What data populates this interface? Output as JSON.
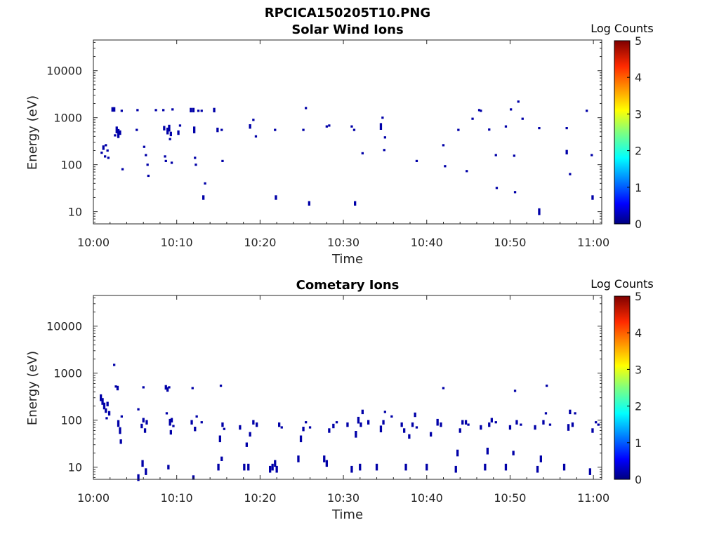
{
  "figure_title": "RPCICA150205T10.PNG",
  "colorbar": {
    "label": "Log Counts",
    "ticks": [
      "0",
      "1",
      "2",
      "3",
      "4",
      "5"
    ],
    "colormap": [
      "#00007f",
      "#0000ff",
      "#007fff",
      "#00ffff",
      "#7fff7f",
      "#ffff00",
      "#ff7f00",
      "#ff0000",
      "#7f0000"
    ]
  },
  "chart_data": [
    {
      "type": "heatmap",
      "title": "Solar Wind Ions",
      "xlabel": "Time",
      "ylabel": "Energy (eV)",
      "x_ticks": [
        "10:00",
        "10:10",
        "10:20",
        "10:30",
        "10:40",
        "10:50",
        "11:00"
      ],
      "y_ticks": [
        "10",
        "100",
        "1000",
        "10000"
      ],
      "y_scale": "log",
      "xlim_minutes": [
        0,
        61
      ],
      "ylim_eV": [
        5.5,
        45000
      ],
      "clim": [
        0,
        5
      ],
      "cell_color": "#0000a8",
      "points": [
        {
          "t": 1.0,
          "e": 180,
          "h": 1
        },
        {
          "t": 1.2,
          "e": 230,
          "h": 2
        },
        {
          "t": 1.4,
          "e": 150,
          "h": 1
        },
        {
          "t": 1.5,
          "e": 260,
          "h": 1
        },
        {
          "t": 1.7,
          "e": 200,
          "h": 1
        },
        {
          "t": 1.8,
          "e": 140,
          "h": 1
        },
        {
          "t": 2.3,
          "e": 1500,
          "h": 2
        },
        {
          "t": 2.5,
          "e": 1500,
          "h": 2
        },
        {
          "t": 2.6,
          "e": 420,
          "h": 1
        },
        {
          "t": 2.8,
          "e": 550,
          "h": 3
        },
        {
          "t": 3.0,
          "e": 460,
          "h": 4
        },
        {
          "t": 3.2,
          "e": 480,
          "h": 2
        },
        {
          "t": 3.4,
          "e": 1400,
          "h": 1
        },
        {
          "t": 3.5,
          "e": 80,
          "h": 1
        },
        {
          "t": 5.2,
          "e": 550,
          "h": 1
        },
        {
          "t": 5.3,
          "e": 1450,
          "h": 1
        },
        {
          "t": 6.1,
          "e": 240,
          "h": 1
        },
        {
          "t": 6.3,
          "e": 160,
          "h": 1
        },
        {
          "t": 6.5,
          "e": 100,
          "h": 1
        },
        {
          "t": 6.6,
          "e": 58,
          "h": 1
        },
        {
          "t": 7.5,
          "e": 1450,
          "h": 1
        },
        {
          "t": 8.4,
          "e": 1450,
          "h": 1
        },
        {
          "t": 8.5,
          "e": 600,
          "h": 2
        },
        {
          "t": 8.6,
          "e": 150,
          "h": 1
        },
        {
          "t": 8.7,
          "e": 120,
          "h": 1
        },
        {
          "t": 8.9,
          "e": 520,
          "h": 3
        },
        {
          "t": 9.1,
          "e": 600,
          "h": 3
        },
        {
          "t": 9.3,
          "e": 450,
          "h": 2
        },
        {
          "t": 9.5,
          "e": 1500,
          "h": 1
        },
        {
          "t": 9.2,
          "e": 350,
          "h": 1
        },
        {
          "t": 9.4,
          "e": 110,
          "h": 1
        },
        {
          "t": 10.2,
          "e": 480,
          "h": 2
        },
        {
          "t": 10.4,
          "e": 680,
          "h": 1
        },
        {
          "t": 11.7,
          "e": 1450,
          "h": 2
        },
        {
          "t": 12.0,
          "e": 1450,
          "h": 2
        },
        {
          "t": 12.1,
          "e": 550,
          "h": 3
        },
        {
          "t": 12.2,
          "e": 140,
          "h": 1
        },
        {
          "t": 12.3,
          "e": 100,
          "h": 1
        },
        {
          "t": 12.6,
          "e": 1400,
          "h": 1
        },
        {
          "t": 13.0,
          "e": 1400,
          "h": 1
        },
        {
          "t": 13.2,
          "e": 20,
          "h": 2
        },
        {
          "t": 13.4,
          "e": 40,
          "h": 1
        },
        {
          "t": 14.5,
          "e": 1450,
          "h": 2
        },
        {
          "t": 14.9,
          "e": 550,
          "h": 2
        },
        {
          "t": 15.4,
          "e": 550,
          "h": 1
        },
        {
          "t": 15.5,
          "e": 120,
          "h": 1
        },
        {
          "t": 18.8,
          "e": 650,
          "h": 2
        },
        {
          "t": 19.2,
          "e": 900,
          "h": 1
        },
        {
          "t": 19.5,
          "e": 400,
          "h": 1
        },
        {
          "t": 21.8,
          "e": 550,
          "h": 1
        },
        {
          "t": 21.9,
          "e": 20,
          "h": 2
        },
        {
          "t": 25.2,
          "e": 550,
          "h": 1
        },
        {
          "t": 25.5,
          "e": 1600,
          "h": 1
        },
        {
          "t": 25.9,
          "e": 15,
          "h": 2
        },
        {
          "t": 28.0,
          "e": 650,
          "h": 1
        },
        {
          "t": 28.3,
          "e": 680,
          "h": 1
        },
        {
          "t": 31.0,
          "e": 650,
          "h": 1
        },
        {
          "t": 31.3,
          "e": 550,
          "h": 1
        },
        {
          "t": 31.4,
          "e": 15,
          "h": 2
        },
        {
          "t": 32.3,
          "e": 175,
          "h": 1
        },
        {
          "t": 34.5,
          "e": 650,
          "h": 3
        },
        {
          "t": 34.7,
          "e": 1000,
          "h": 1
        },
        {
          "t": 35.0,
          "e": 380,
          "h": 1
        },
        {
          "t": 34.9,
          "e": 205,
          "h": 1
        },
        {
          "t": 38.8,
          "e": 120,
          "h": 1
        },
        {
          "t": 42.0,
          "e": 260,
          "h": 1
        },
        {
          "t": 42.2,
          "e": 93,
          "h": 1
        },
        {
          "t": 43.8,
          "e": 550,
          "h": 1
        },
        {
          "t": 44.8,
          "e": 73,
          "h": 1
        },
        {
          "t": 45.5,
          "e": 950,
          "h": 1
        },
        {
          "t": 46.3,
          "e": 1450,
          "h": 1
        },
        {
          "t": 46.5,
          "e": 1400,
          "h": 1
        },
        {
          "t": 47.5,
          "e": 560,
          "h": 1
        },
        {
          "t": 48.3,
          "e": 160,
          "h": 1
        },
        {
          "t": 48.4,
          "e": 32,
          "h": 1
        },
        {
          "t": 49.5,
          "e": 650,
          "h": 1
        },
        {
          "t": 50.1,
          "e": 1500,
          "h": 1
        },
        {
          "t": 50.5,
          "e": 155,
          "h": 1
        },
        {
          "t": 50.6,
          "e": 26,
          "h": 1
        },
        {
          "t": 51.0,
          "e": 2200,
          "h": 1
        },
        {
          "t": 51.5,
          "e": 950,
          "h": 1
        },
        {
          "t": 53.5,
          "e": 600,
          "h": 1
        },
        {
          "t": 53.5,
          "e": 10,
          "h": 3
        },
        {
          "t": 56.8,
          "e": 600,
          "h": 1
        },
        {
          "t": 56.8,
          "e": 185,
          "h": 2
        },
        {
          "t": 57.2,
          "e": 63,
          "h": 1
        },
        {
          "t": 59.2,
          "e": 1400,
          "h": 1
        },
        {
          "t": 59.8,
          "e": 160,
          "h": 1
        },
        {
          "t": 59.9,
          "e": 20,
          "h": 2
        }
      ]
    },
    {
      "type": "heatmap",
      "title": "Cometary Ions",
      "xlabel": "Time",
      "ylabel": "Energy (eV)",
      "x_ticks": [
        "10:00",
        "10:10",
        "10:20",
        "10:30",
        "10:40",
        "10:50",
        "11:00"
      ],
      "y_ticks": [
        "10",
        "100",
        "1000",
        "10000"
      ],
      "y_scale": "log",
      "xlim_minutes": [
        0,
        61
      ],
      "ylim_eV": [
        5.5,
        45000
      ],
      "clim": [
        0,
        5
      ],
      "cell_color": "#0000a8",
      "points": [
        {
          "t": 0.9,
          "e": 300,
          "h": 3
        },
        {
          "t": 1.1,
          "e": 250,
          "h": 3
        },
        {
          "t": 1.3,
          "e": 200,
          "h": 3
        },
        {
          "t": 1.5,
          "e": 160,
          "h": 2
        },
        {
          "t": 1.7,
          "e": 220,
          "h": 2
        },
        {
          "t": 1.9,
          "e": 140,
          "h": 2
        },
        {
          "t": 1.6,
          "e": 110,
          "h": 1
        },
        {
          "t": 2.5,
          "e": 1500,
          "h": 1
        },
        {
          "t": 2.7,
          "e": 520,
          "h": 1
        },
        {
          "t": 2.9,
          "e": 480,
          "h": 2
        },
        {
          "t": 3.0,
          "e": 85,
          "h": 3
        },
        {
          "t": 3.2,
          "e": 60,
          "h": 3
        },
        {
          "t": 3.3,
          "e": 35,
          "h": 2
        },
        {
          "t": 3.4,
          "e": 120,
          "h": 1
        },
        {
          "t": 5.4,
          "e": 6,
          "h": 3
        },
        {
          "t": 5.8,
          "e": 75,
          "h": 2
        },
        {
          "t": 6.0,
          "e": 100,
          "h": 2
        },
        {
          "t": 6.2,
          "e": 60,
          "h": 2
        },
        {
          "t": 6.0,
          "e": 500,
          "h": 1
        },
        {
          "t": 5.4,
          "e": 170,
          "h": 1
        },
        {
          "t": 6.4,
          "e": 90,
          "h": 2
        },
        {
          "t": 6.3,
          "e": 8,
          "h": 3
        },
        {
          "t": 5.9,
          "e": 12,
          "h": 3
        },
        {
          "t": 8.7,
          "e": 500,
          "h": 2
        },
        {
          "t": 8.9,
          "e": 450,
          "h": 2
        },
        {
          "t": 9.1,
          "e": 500,
          "h": 1
        },
        {
          "t": 9.2,
          "e": 90,
          "h": 3
        },
        {
          "t": 9.4,
          "e": 100,
          "h": 2
        },
        {
          "t": 9.0,
          "e": 10,
          "h": 2
        },
        {
          "t": 9.3,
          "e": 55,
          "h": 2
        },
        {
          "t": 8.8,
          "e": 140,
          "h": 1
        },
        {
          "t": 9.6,
          "e": 75,
          "h": 1
        },
        {
          "t": 11.8,
          "e": 90,
          "h": 2
        },
        {
          "t": 12.0,
          "e": 6,
          "h": 2
        },
        {
          "t": 11.9,
          "e": 480,
          "h": 1
        },
        {
          "t": 12.2,
          "e": 65,
          "h": 2
        },
        {
          "t": 12.4,
          "e": 120,
          "h": 1
        },
        {
          "t": 13.0,
          "e": 90,
          "h": 1
        },
        {
          "t": 15.0,
          "e": 10,
          "h": 3
        },
        {
          "t": 15.2,
          "e": 40,
          "h": 3
        },
        {
          "t": 15.4,
          "e": 15,
          "h": 2
        },
        {
          "t": 15.5,
          "e": 80,
          "h": 2
        },
        {
          "t": 15.3,
          "e": 540,
          "h": 1
        },
        {
          "t": 15.7,
          "e": 65,
          "h": 1
        },
        {
          "t": 17.6,
          "e": 70,
          "h": 2
        },
        {
          "t": 18.1,
          "e": 10,
          "h": 3
        },
        {
          "t": 18.4,
          "e": 30,
          "h": 2
        },
        {
          "t": 18.6,
          "e": 10,
          "h": 3
        },
        {
          "t": 18.8,
          "e": 50,
          "h": 2
        },
        {
          "t": 19.2,
          "e": 90,
          "h": 2
        },
        {
          "t": 19.6,
          "e": 80,
          "h": 2
        },
        {
          "t": 21.2,
          "e": 9,
          "h": 3
        },
        {
          "t": 21.5,
          "e": 10,
          "h": 3
        },
        {
          "t": 21.8,
          "e": 12,
          "h": 3
        },
        {
          "t": 22.0,
          "e": 9,
          "h": 3
        },
        {
          "t": 22.3,
          "e": 80,
          "h": 2
        },
        {
          "t": 22.6,
          "e": 70,
          "h": 1
        },
        {
          "t": 24.6,
          "e": 15,
          "h": 3
        },
        {
          "t": 24.9,
          "e": 40,
          "h": 3
        },
        {
          "t": 25.2,
          "e": 65,
          "h": 2
        },
        {
          "t": 25.5,
          "e": 90,
          "h": 1
        },
        {
          "t": 26.0,
          "e": 70,
          "h": 1
        },
        {
          "t": 27.7,
          "e": 15,
          "h": 3
        },
        {
          "t": 28.0,
          "e": 12,
          "h": 3
        },
        {
          "t": 28.3,
          "e": 60,
          "h": 2
        },
        {
          "t": 28.8,
          "e": 75,
          "h": 2
        },
        {
          "t": 29.2,
          "e": 90,
          "h": 1
        },
        {
          "t": 30.5,
          "e": 80,
          "h": 2
        },
        {
          "t": 31.0,
          "e": 9,
          "h": 3
        },
        {
          "t": 31.5,
          "e": 50,
          "h": 3
        },
        {
          "t": 31.8,
          "e": 100,
          "h": 3
        },
        {
          "t": 32.1,
          "e": 80,
          "h": 2
        },
        {
          "t": 32.3,
          "e": 150,
          "h": 2
        },
        {
          "t": 32.0,
          "e": 10,
          "h": 3
        },
        {
          "t": 33.0,
          "e": 90,
          "h": 2
        },
        {
          "t": 34.0,
          "e": 10,
          "h": 3
        },
        {
          "t": 34.5,
          "e": 65,
          "h": 3
        },
        {
          "t": 34.8,
          "e": 90,
          "h": 2
        },
        {
          "t": 35.0,
          "e": 150,
          "h": 1
        },
        {
          "t": 35.8,
          "e": 120,
          "h": 1
        },
        {
          "t": 37.0,
          "e": 80,
          "h": 2
        },
        {
          "t": 37.3,
          "e": 60,
          "h": 2
        },
        {
          "t": 37.5,
          "e": 10,
          "h": 3
        },
        {
          "t": 37.9,
          "e": 45,
          "h": 2
        },
        {
          "t": 38.3,
          "e": 80,
          "h": 2
        },
        {
          "t": 38.6,
          "e": 130,
          "h": 2
        },
        {
          "t": 38.8,
          "e": 70,
          "h": 1
        },
        {
          "t": 40.0,
          "e": 10,
          "h": 3
        },
        {
          "t": 40.5,
          "e": 50,
          "h": 2
        },
        {
          "t": 41.3,
          "e": 90,
          "h": 3
        },
        {
          "t": 41.7,
          "e": 80,
          "h": 2
        },
        {
          "t": 42.0,
          "e": 480,
          "h": 1
        },
        {
          "t": 43.5,
          "e": 9,
          "h": 3
        },
        {
          "t": 43.7,
          "e": 20,
          "h": 3
        },
        {
          "t": 44.0,
          "e": 60,
          "h": 2
        },
        {
          "t": 44.3,
          "e": 90,
          "h": 2
        },
        {
          "t": 44.7,
          "e": 90,
          "h": 2
        },
        {
          "t": 45.0,
          "e": 80,
          "h": 1
        },
        {
          "t": 46.5,
          "e": 70,
          "h": 2
        },
        {
          "t": 47.0,
          "e": 10,
          "h": 3
        },
        {
          "t": 47.3,
          "e": 22,
          "h": 3
        },
        {
          "t": 47.5,
          "e": 80,
          "h": 2
        },
        {
          "t": 47.8,
          "e": 100,
          "h": 2
        },
        {
          "t": 48.3,
          "e": 90,
          "h": 1
        },
        {
          "t": 49.5,
          "e": 10,
          "h": 3
        },
        {
          "t": 50.0,
          "e": 70,
          "h": 2
        },
        {
          "t": 50.4,
          "e": 20,
          "h": 2
        },
        {
          "t": 50.8,
          "e": 90,
          "h": 2
        },
        {
          "t": 50.6,
          "e": 420,
          "h": 1
        },
        {
          "t": 51.3,
          "e": 80,
          "h": 1
        },
        {
          "t": 53.0,
          "e": 70,
          "h": 2
        },
        {
          "t": 53.3,
          "e": 9,
          "h": 3
        },
        {
          "t": 53.7,
          "e": 15,
          "h": 3
        },
        {
          "t": 54.0,
          "e": 90,
          "h": 2
        },
        {
          "t": 54.3,
          "e": 140,
          "h": 1
        },
        {
          "t": 54.4,
          "e": 540,
          "h": 1
        },
        {
          "t": 54.8,
          "e": 80,
          "h": 1
        },
        {
          "t": 56.5,
          "e": 10,
          "h": 3
        },
        {
          "t": 57.0,
          "e": 70,
          "h": 3
        },
        {
          "t": 57.2,
          "e": 150,
          "h": 2
        },
        {
          "t": 57.5,
          "e": 80,
          "h": 2
        },
        {
          "t": 57.8,
          "e": 140,
          "h": 1
        },
        {
          "t": 59.6,
          "e": 8,
          "h": 3
        },
        {
          "t": 59.9,
          "e": 60,
          "h": 2
        },
        {
          "t": 60.3,
          "e": 90,
          "h": 1
        },
        {
          "t": 60.6,
          "e": 80,
          "h": 1
        }
      ]
    }
  ]
}
